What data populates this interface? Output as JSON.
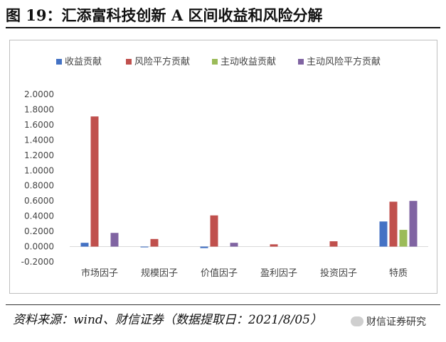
{
  "header": {
    "figure_title": "图 19：汇添富科技创新 A 区间收益和风险分解"
  },
  "footer": {
    "source": "资料来源：wind、财信证券（数据提取日：2021/8/05）",
    "watermark": "财信证券研究"
  },
  "chart_data": {
    "type": "bar",
    "title": "",
    "xlabel": "",
    "ylabel": "",
    "categories": [
      "市场因子",
      "规模因子",
      "价值因子",
      "盈利因子",
      "投资因子",
      "特质"
    ],
    "series": [
      {
        "name": "收益贡献",
        "color": "#4472C4",
        "values": [
          0.05,
          -0.01,
          -0.02,
          0.0,
          0.0,
          0.33
        ]
      },
      {
        "name": "风险平方贡献",
        "color": "#C0504D",
        "values": [
          1.71,
          0.1,
          0.41,
          0.03,
          0.07,
          0.59
        ]
      },
      {
        "name": "主动收益贡献",
        "color": "#9BBB59",
        "values": [
          0.0,
          0.0,
          0.0,
          0.0,
          0.0,
          0.22
        ]
      },
      {
        "name": "主动风险平方贡献",
        "color": "#8064A2",
        "values": [
          0.18,
          0.0,
          0.05,
          0.0,
          0.0,
          0.6
        ]
      }
    ],
    "y_ticks": [
      "-0.2000",
      "0.0000",
      "0.2000",
      "0.4000",
      "0.6000",
      "0.8000",
      "1.0000",
      "1.2000",
      "1.4000",
      "1.6000",
      "1.8000",
      "2.0000"
    ],
    "ylim": [
      -0.2,
      2.0
    ],
    "grid": false,
    "legend_position": "top"
  }
}
